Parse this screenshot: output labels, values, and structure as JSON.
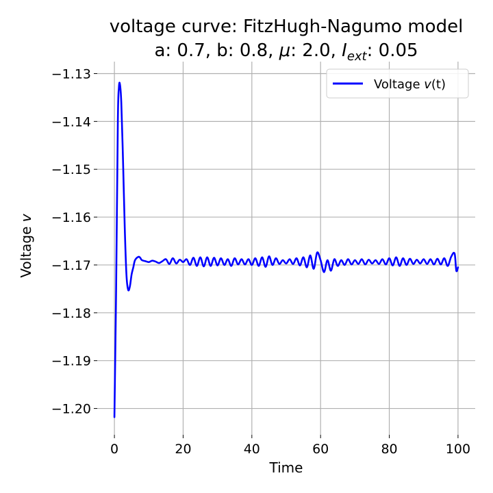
{
  "chart_data": {
    "type": "line",
    "title_line1": "voltage curve: FitzHugh-Nagumo model",
    "title_line2_parts": {
      "params": "a: 0.7, b: 0.8, ",
      "mu_symbol": "μ",
      "mu_value": ": 2.0, ",
      "iext_symbol": "I",
      "iext_subscript": "ext",
      "iext_value": ": 0.05"
    },
    "xlabel": "Time",
    "ylabel_text": "Voltage ",
    "ylabel_symbol": "v",
    "xlim": [
      -5,
      105
    ],
    "ylim": [
      -1.2055,
      -1.1275
    ],
    "xticks": [
      0,
      20,
      40,
      60,
      80,
      100
    ],
    "xtick_labels": [
      "0",
      "20",
      "40",
      "60",
      "80",
      "100"
    ],
    "yticks": [
      -1.2,
      -1.19,
      -1.18,
      -1.17,
      -1.16,
      -1.15,
      -1.14,
      -1.13
    ],
    "ytick_labels": [
      "−1.20",
      "−1.19",
      "−1.18",
      "−1.17",
      "−1.16",
      "−1.15",
      "−1.14",
      "−1.13"
    ],
    "grid": true,
    "legend_position": "top-right",
    "series": [
      {
        "name_text": "Voltage ",
        "name_symbol": "v",
        "name_suffix": "(t)",
        "color": "#0000ff",
        "x": [
          0,
          0.5,
          1.0,
          1.3,
          1.6,
          2.0,
          2.5,
          3.0,
          3.5,
          4.0,
          4.5,
          5.0,
          5.5,
          6.0,
          7.0,
          7.5,
          8.0,
          9.0,
          10.0,
          11.0,
          12.0,
          13.0,
          14.0,
          15.0,
          16.0,
          17.0,
          18.0,
          19.0,
          20.0,
          21.0,
          22.0,
          23.0,
          24.0,
          25.0,
          26.0,
          27.0,
          28.0,
          29.0,
          30.0,
          31.0,
          32.0,
          33.0,
          34.0,
          35.0,
          36.0,
          37.0,
          38.0,
          39.0,
          40.0,
          41.0,
          42.0,
          43.0,
          44.0,
          45.0,
          46.0,
          47.0,
          48.0,
          49.0,
          50.0,
          51.0,
          52.0,
          53.0,
          54.0,
          55.0,
          56.0,
          57.0,
          58.0,
          59.0,
          60.0,
          61.0,
          62.0,
          63.0,
          64.0,
          65.0,
          66.0,
          67.0,
          68.0,
          69.0,
          70.0,
          71.0,
          72.0,
          73.0,
          74.0,
          75.0,
          76.0,
          77.0,
          78.0,
          79.0,
          80.0,
          81.0,
          82.0,
          83.0,
          84.0,
          85.0,
          86.0,
          87.0,
          88.0,
          89.0,
          90.0,
          91.0,
          92.0,
          93.0,
          94.0,
          95.0,
          96.0,
          97.0,
          98.0,
          99.0,
          99.5,
          100.0
        ],
        "y": [
          -1.2018,
          -1.175,
          -1.14,
          -1.133,
          -1.1322,
          -1.136,
          -1.148,
          -1.162,
          -1.172,
          -1.1752,
          -1.1745,
          -1.172,
          -1.1705,
          -1.169,
          -1.1683,
          -1.1685,
          -1.169,
          -1.1692,
          -1.1694,
          -1.1691,
          -1.1693,
          -1.1696,
          -1.1692,
          -1.1688,
          -1.1698,
          -1.1686,
          -1.1697,
          -1.1689,
          -1.1694,
          -1.1688,
          -1.17,
          -1.1685,
          -1.1702,
          -1.1684,
          -1.1703,
          -1.1684,
          -1.1702,
          -1.1685,
          -1.1701,
          -1.1686,
          -1.17,
          -1.1688,
          -1.1702,
          -1.1686,
          -1.1699,
          -1.1688,
          -1.1699,
          -1.1688,
          -1.17,
          -1.1686,
          -1.1702,
          -1.1684,
          -1.1704,
          -1.1682,
          -1.17,
          -1.1686,
          -1.1698,
          -1.169,
          -1.1697,
          -1.1688,
          -1.1698,
          -1.1686,
          -1.1701,
          -1.1684,
          -1.1705,
          -1.168,
          -1.1708,
          -1.1674,
          -1.169,
          -1.1715,
          -1.169,
          -1.1712,
          -1.1688,
          -1.1702,
          -1.169,
          -1.17,
          -1.1688,
          -1.1699,
          -1.169,
          -1.1698,
          -1.1688,
          -1.1699,
          -1.1689,
          -1.1697,
          -1.169,
          -1.1698,
          -1.1688,
          -1.1699,
          -1.1686,
          -1.1701,
          -1.1684,
          -1.1702,
          -1.1686,
          -1.17,
          -1.1687,
          -1.1698,
          -1.1689,
          -1.1697,
          -1.1688,
          -1.1698,
          -1.1688,
          -1.1699,
          -1.1687,
          -1.1699,
          -1.1686,
          -1.1702,
          -1.1683,
          -1.1676,
          -1.1712,
          -1.1705
        ]
      }
    ]
  }
}
